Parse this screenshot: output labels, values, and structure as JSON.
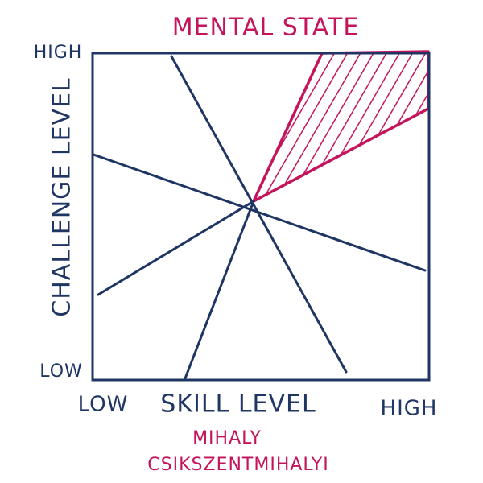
{
  "title": "MENTAL STATE",
  "y_axis": {
    "label": "CHALLENGE LEVEL",
    "high": "HIGH",
    "low": "LOW"
  },
  "x_axis": {
    "label": "SKILL LEVEL",
    "low": "LOW",
    "high": "HIGH"
  },
  "author": [
    "MIHALY",
    "CSIKSZENTMIHALYI"
  ]
}
